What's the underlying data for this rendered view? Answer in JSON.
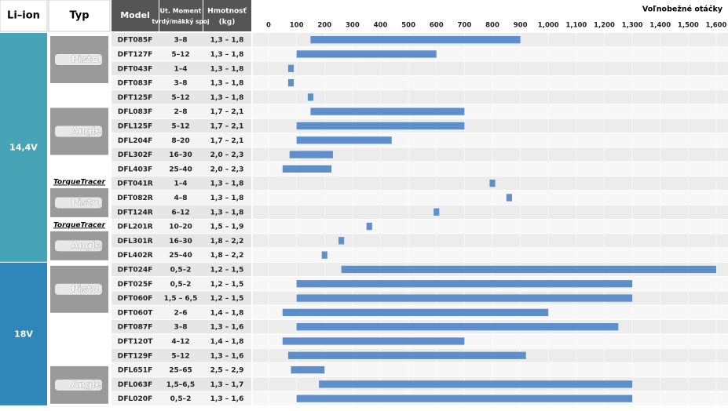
{
  "header": {
    "liion": "Li–ion",
    "typ": "Typ",
    "model": "Model",
    "torque": [
      "Ut. Moment",
      "tvrdý/mäkký spoj"
    ],
    "weight": [
      "Hmotnosť",
      "(kg)"
    ]
  },
  "voltage_groups": [
    {
      "label": "14,4V",
      "types": [
        {
          "label": "Pistol",
          "rows": [
            {
              "model": "DFT085F",
              "torque": "3–8",
              "weight": "1,3 – 1,8"
            },
            {
              "model": "DFT127F",
              "torque": "5–12",
              "weight": "1,3 – 1,8"
            },
            {
              "model": "DFT043F",
              "torque": "1–4",
              "weight": "1,3 – 1,8"
            },
            {
              "model": "DFT083F",
              "torque": "3–8",
              "weight": "1,3 – 1,8"
            },
            {
              "model": "DFT125F",
              "torque": "5–12",
              "weight": "1,3 – 1,8"
            }
          ]
        },
        {
          "label": "Angle",
          "rows": [
            {
              "model": "DFL083F",
              "torque": "2–8",
              "weight": "1,7 – 2,1"
            },
            {
              "model": "DFL125F",
              "torque": "5–12",
              "weight": "1,7 – 2,1"
            },
            {
              "model": "DFL204F",
              "torque": "8–20",
              "weight": "1,7 – 2,1"
            },
            {
              "model": "DFL302F",
              "torque": "16–30",
              "weight": "2,0 – 2,3"
            },
            {
              "model": "DFL403F",
              "torque": "25–40",
              "weight": "2,0 – 2,3"
            }
          ]
        },
        {
          "label": "Pistol",
          "brand": "TorqueTracer",
          "rows": [
            {
              "model": "DFT041R",
              "torque": "1–4",
              "weight": "1,3 – 1,8"
            },
            {
              "model": "DFT082R",
              "torque": "4–8",
              "weight": "1,3 – 1,8"
            },
            {
              "model": "DFT124R",
              "torque": "6–12",
              "weight": "1,3 – 1,8"
            }
          ]
        },
        {
          "label": "Angle",
          "brand": "TorqueTracer",
          "rows": [
            {
              "model": "DFL201R",
              "torque": "10–20",
              "weight": "1,5 – 1,9"
            },
            {
              "model": "DFL301R",
              "torque": "16–30",
              "weight": "1,8 – 2,2"
            },
            {
              "model": "DFL402R",
              "torque": "25–40",
              "weight": "1,8 – 2,2"
            }
          ]
        }
      ]
    },
    {
      "label": "18V",
      "types": [
        {
          "label": "Pistol",
          "rows": [
            {
              "model": "DFT024F",
              "torque": "0,5–2",
              "weight": "1,2 – 1,5"
            },
            {
              "model": "DFT025F",
              "torque": "0,5–2",
              "weight": "1,2 – 1,5"
            },
            {
              "model": "DFT060F",
              "torque": "1,5 – 6,5",
              "weight": "1,2 – 1,5"
            },
            {
              "model": "DFT060T",
              "torque": "2–6",
              "weight": "1,4 – 1,8"
            },
            {
              "model": "DFT087F",
              "torque": "3–8",
              "weight": "1,3 – 1,6"
            },
            {
              "model": "DFT120T",
              "torque": "4–12",
              "weight": "1,4 – 1,8"
            },
            {
              "model": "DFT129F",
              "torque": "5–12",
              "weight": "1,3 – 1,6"
            }
          ]
        },
        {
          "label": "Angle",
          "rows": [
            {
              "model": "DFL651F",
              "torque": "25–65",
              "weight": "2,5 – 2,9"
            },
            {
              "model": "DFL063F",
              "torque": "1,5–6,5",
              "weight": "1,3 – 1,7"
            },
            {
              "model": "DFL020F",
              "torque": "0,5–2",
              "weight": "1,3 – 1,6"
            }
          ]
        }
      ]
    }
  ],
  "chart_data": {
    "type": "range-bar",
    "title": "Voľnobežné otáčky",
    "color": "#5f8fcb",
    "low": [
      150,
      100,
      70,
      70,
      140,
      150,
      100,
      100,
      75,
      50,
      790,
      850,
      590,
      350,
      250,
      190,
      260,
      100,
      100,
      50,
      100,
      50,
      70,
      80,
      180,
      100
    ],
    "high": [
      900,
      600,
      90,
      90,
      160,
      700,
      700,
      440,
      230,
      225,
      810,
      870,
      610,
      370,
      270,
      210,
      1600,
      1300,
      1300,
      1000,
      1250,
      700,
      920,
      200,
      1300,
      1300
    ],
    "xlim": [
      0,
      1600
    ],
    "xticks": [
      0,
      100,
      200,
      300,
      400,
      500,
      600,
      700,
      800,
      900,
      {
        "value": 1000,
        "label": "1,000"
      },
      {
        "value": 1100,
        "label": "1,100"
      },
      {
        "value": 1200,
        "label": "1,200"
      },
      {
        "value": 1300,
        "label": "1,300"
      },
      {
        "value": 1400,
        "label": "1,400"
      },
      {
        "value": 1500,
        "label": "1,500"
      },
      {
        "value": 1600,
        "label": "1,600"
      }
    ]
  }
}
